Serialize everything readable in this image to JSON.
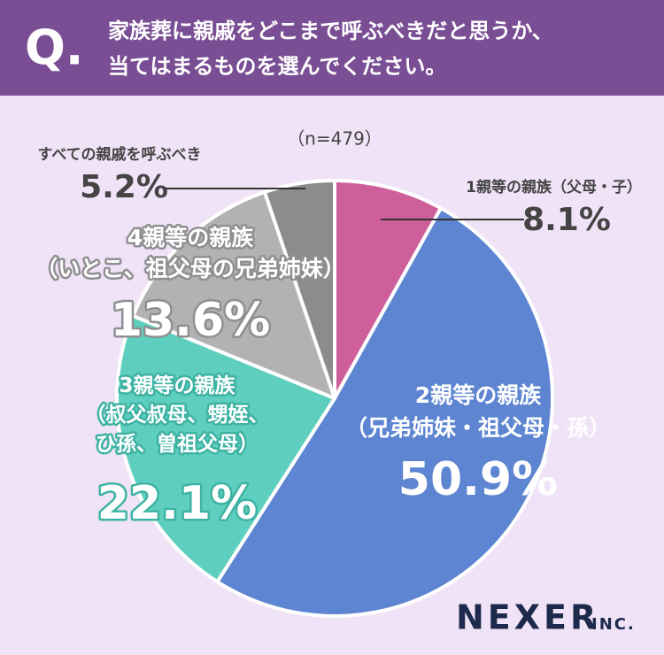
{
  "chart_data": {
    "type": "pie",
    "question_mark": "Q.",
    "title": [
      "家族葬に親戚をどこまで呼ぶべきだと思うか、",
      "当てはまるものを選んでください。"
    ],
    "subtitle": "（n=479）",
    "categories": [
      "1親等の親族（父母・子）",
      "2親等の親族\n（兄弟姉妹・祖父母・孫）",
      "3親等の親族\n（叔父叔母、甥姪、\nひ孫、曽祖父母）",
      "4親等の親族\n（いとこ、祖父母の兄弟姉妹）",
      "すべての親戚を呼ぶべき"
    ],
    "values": [
      8.1,
      50.9,
      22.1,
      13.6,
      5.2
    ],
    "value_labels": [
      "8.1%",
      "50.9%",
      "22.1%",
      "13.6%",
      "5.2%"
    ],
    "colors": [
      "#cf5f9b",
      "#5d85d1",
      "#5ecfbe",
      "#b2b2b4",
      "#8d8b8d"
    ],
    "logo": "NEXER",
    "logo_suffix": "INC."
  }
}
